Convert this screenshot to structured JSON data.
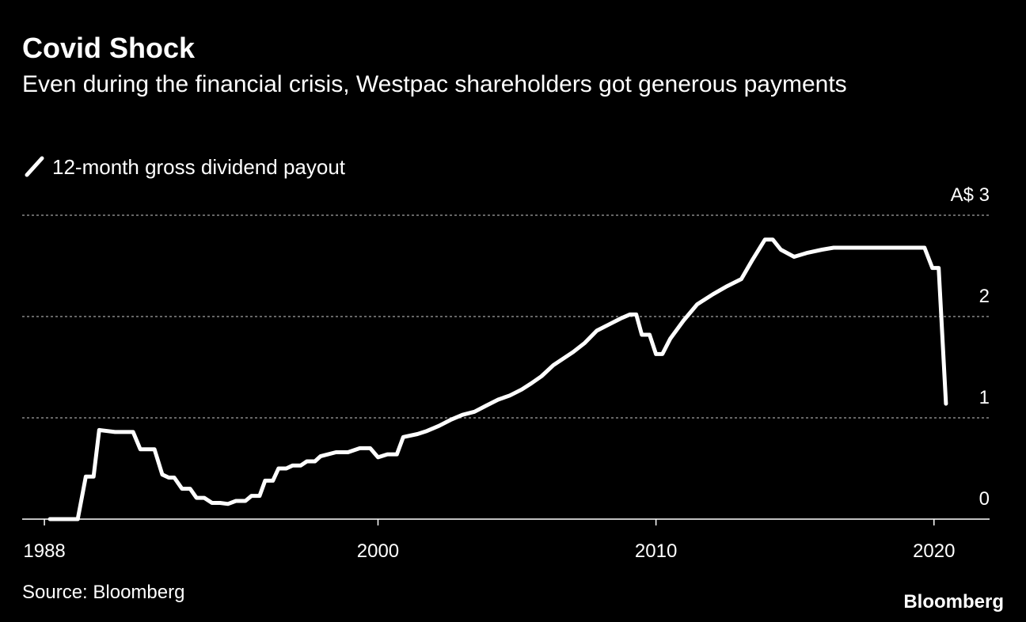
{
  "chart_data": {
    "type": "line",
    "title": "Covid Shock",
    "subtitle": "Even during the financial crisis, Westpac shareholders got generous payments",
    "source": "Source: Bloomberg",
    "brand": "Bloomberg",
    "xlim": [
      1987.2,
      2022
    ],
    "xticks": [
      1988,
      2000,
      2010,
      2020
    ],
    "ylim": [
      0,
      3
    ],
    "yticks": [
      0,
      1,
      2,
      {
        "value": 3,
        "label": "A$ 3"
      }
    ],
    "grid": true,
    "x": [
      1988.2,
      1989.2,
      1989.49,
      1989.77,
      1989.97,
      1990.54,
      1991.19,
      1991.45,
      1991.96,
      1992.24,
      1992.47,
      1992.67,
      1992.95,
      1993.24,
      1993.47,
      1993.75,
      1994.03,
      1994.32,
      1994.6,
      1994.89,
      1995.23,
      1995.45,
      1995.74,
      1995.94,
      1996.22,
      1996.42,
      1996.7,
      1996.93,
      1997.22,
      1997.44,
      1997.73,
      1997.93,
      1998.49,
      1998.92,
      1999.35,
      1999.72,
      2000.0,
      2000.34,
      2000.68,
      2000.91,
      2001.42,
      2001.76,
      2002.19,
      2002.61,
      2003.04,
      2003.47,
      2003.89,
      2004.32,
      2004.74,
      2005.17,
      2005.51,
      2005.88,
      2006.31,
      2007.02,
      2007.44,
      2007.87,
      2008.3,
      2008.72,
      2009.06,
      2009.29,
      2009.49,
      2009.77,
      2010.0,
      2010.23,
      2010.51,
      2010.99,
      2011.48,
      2012.05,
      2012.56,
      2013.07,
      2013.47,
      2013.92,
      2014.2,
      2014.49,
      2014.97,
      2015.45,
      2015.97,
      2016.39,
      2019.66,
      2019.94,
      2020.17,
      2020.43
    ],
    "series": [
      {
        "name": "12-month gross dividend payout",
        "color": "#ffffff",
        "values": [
          0,
          0,
          0.42,
          0.42,
          0.88,
          0.86,
          0.86,
          0.69,
          0.69,
          0.44,
          0.41,
          0.41,
          0.3,
          0.3,
          0.21,
          0.21,
          0.16,
          0.16,
          0.15,
          0.18,
          0.18,
          0.23,
          0.23,
          0.38,
          0.38,
          0.5,
          0.5,
          0.53,
          0.53,
          0.57,
          0.57,
          0.62,
          0.66,
          0.66,
          0.7,
          0.7,
          0.61,
          0.64,
          0.64,
          0.81,
          0.84,
          0.87,
          0.92,
          0.98,
          1.03,
          1.06,
          1.12,
          1.18,
          1.22,
          1.28,
          1.34,
          1.41,
          1.52,
          1.65,
          1.74,
          1.86,
          1.92,
          1.98,
          2.02,
          2.02,
          1.82,
          1.82,
          1.63,
          1.63,
          1.78,
          1.96,
          2.12,
          2.22,
          2.3,
          2.37,
          2.56,
          2.76,
          2.76,
          2.66,
          2.59,
          2.63,
          2.66,
          2.68,
          2.68,
          2.48,
          2.48,
          1.14
        ]
      }
    ]
  }
}
